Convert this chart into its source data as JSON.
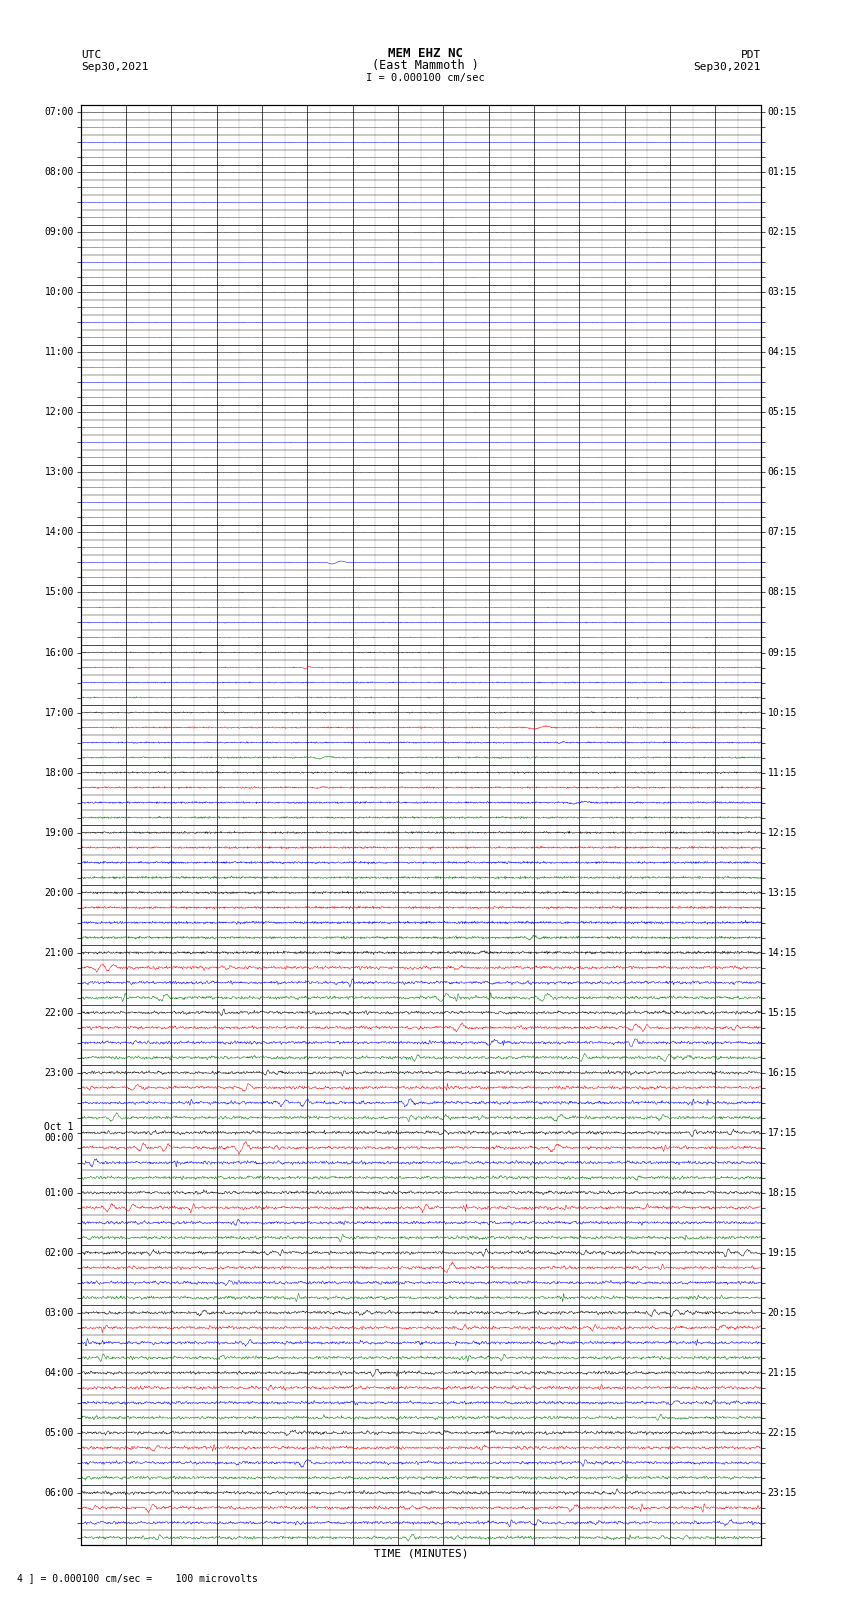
{
  "title_line1": "MEM EHZ NC",
  "title_line2": "(East Mammoth )",
  "title_line3": "I = 0.000100 cm/sec",
  "left_header_line1": "UTC",
  "left_header_line2": "Sep30,2021",
  "right_header_line1": "PDT",
  "right_header_line2": "Sep30,2021",
  "xlabel": "TIME (MINUTES)",
  "footer": "4 ] = 0.000100 cm/sec =    100 microvolts",
  "utc_labels": [
    "07:00",
    "",
    "",
    "",
    "08:00",
    "",
    "",
    "",
    "09:00",
    "",
    "",
    "",
    "10:00",
    "",
    "",
    "",
    "11:00",
    "",
    "",
    "",
    "12:00",
    "",
    "",
    "",
    "13:00",
    "",
    "",
    "",
    "14:00",
    "",
    "",
    "",
    "15:00",
    "",
    "",
    "",
    "16:00",
    "",
    "",
    "",
    "17:00",
    "",
    "",
    "",
    "18:00",
    "",
    "",
    "",
    "19:00",
    "",
    "",
    "",
    "20:00",
    "",
    "",
    "",
    "21:00",
    "",
    "",
    "",
    "22:00",
    "",
    "",
    "",
    "23:00",
    "",
    "",
    "",
    "Oct 1\n00:00",
    "",
    "",
    "",
    "01:00",
    "",
    "",
    "",
    "02:00",
    "",
    "",
    "",
    "03:00",
    "",
    "",
    "",
    "04:00",
    "",
    "",
    "",
    "05:00",
    "",
    "",
    "",
    "06:00",
    "",
    "",
    ""
  ],
  "pdt_labels": [
    "00:15",
    "",
    "",
    "",
    "01:15",
    "",
    "",
    "",
    "02:15",
    "",
    "",
    "",
    "03:15",
    "",
    "",
    "",
    "04:15",
    "",
    "",
    "",
    "05:15",
    "",
    "",
    "",
    "06:15",
    "",
    "",
    "",
    "07:15",
    "",
    "",
    "",
    "08:15",
    "",
    "",
    "",
    "09:15",
    "",
    "",
    "",
    "10:15",
    "",
    "",
    "",
    "11:15",
    "",
    "",
    "",
    "12:15",
    "",
    "",
    "",
    "13:15",
    "",
    "",
    "",
    "14:15",
    "",
    "",
    "",
    "15:15",
    "",
    "",
    "",
    "16:15",
    "",
    "",
    "",
    "17:15",
    "",
    "",
    "",
    "18:15",
    "",
    "",
    "",
    "19:15",
    "",
    "",
    "",
    "20:15",
    "",
    "",
    "",
    "21:15",
    "",
    "",
    "",
    "22:15",
    "",
    "",
    "",
    "23:15",
    "",
    "",
    ""
  ],
  "n_rows": 96,
  "minutes": 15,
  "background_color": "#ffffff",
  "trace_colors_cycle": [
    "#000000",
    "#ff0000",
    "#0000ff",
    "#008000"
  ],
  "quiet_rows": 30,
  "active_row": 57
}
